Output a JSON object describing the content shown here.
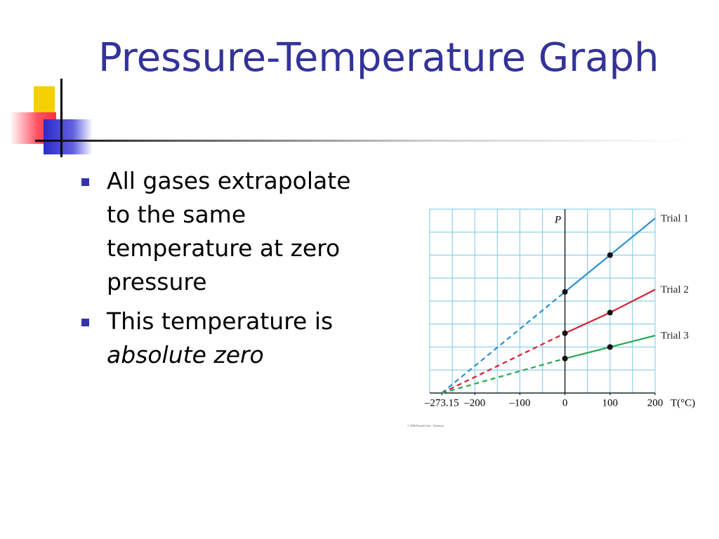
{
  "slide": {
    "title": "Pressure-Temperature Graph",
    "bullets": [
      {
        "text": "All gases extrapolate to the same temperature at zero pressure"
      },
      {
        "text": "This temperature is",
        "emphasis": "absolute zero"
      }
    ]
  },
  "chart_data": {
    "type": "line",
    "x_label": "T(°C)",
    "y_label": "P",
    "x": [
      -273.15,
      0,
      100,
      200
    ],
    "series": [
      {
        "name": "Trial 1",
        "color": "#2a8fd0",
        "values": [
          0,
          4.4,
          6.0,
          7.6
        ]
      },
      {
        "name": "Trial 2",
        "color": "#d42030",
        "values": [
          0,
          2.6,
          3.5,
          4.5
        ]
      },
      {
        "name": "Trial 3",
        "color": "#22aa55",
        "values": [
          0,
          1.5,
          2.0,
          2.5
        ]
      }
    ],
    "xlim": [
      -300,
      200
    ],
    "ylim": [
      0,
      8
    ],
    "xticks": [
      {
        "value": -273.15,
        "label": "–273.15"
      },
      {
        "value": -200,
        "label": "–200"
      },
      {
        "value": -100,
        "label": "–100"
      },
      0,
      100,
      200
    ],
    "grid": true,
    "credit": "© 2006 Brooks/Cole - Thomson"
  }
}
